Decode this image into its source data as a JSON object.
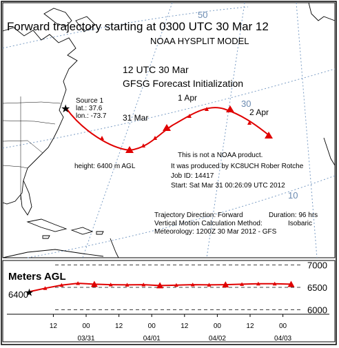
{
  "header": {
    "title": "Forward trajectory starting at 0300 UTC 30 Mar 12",
    "model": "NOAA HYSPLIT MODEL",
    "init_time": "12 UTC 30 Mar",
    "init_label": "GFSG  Forecast Initialization"
  },
  "source": {
    "label": "Source 1",
    "lat": "lat.: 37.6",
    "lon": "lon.: -73.7",
    "height": "height: 6400 m AGL"
  },
  "disclaimer": {
    "line1": "This is not a NOAA product.",
    "line2": "It was produced by KC8UCH Rober Rotche",
    "job": "Job ID: 14417",
    "start": "Start: Sat Mar 31 00:26:09 UTC 2012"
  },
  "run_info": {
    "direction_label": "Trajectory Direction: Forward",
    "duration": "Duration: 96 hrs",
    "vertical_label": "Vertical Motion Calculation Method:",
    "vertical_value": "Isobaric",
    "meteorology": "Meteorology: 1200Z 30 Mar 2012 - GFS"
  },
  "map": {
    "grid_labels": [
      "50",
      "30",
      "10"
    ],
    "day_labels": [
      "31 Mar",
      "1 Apr",
      "2 Apr"
    ]
  },
  "profile": {
    "ylabel": "Meters AGL",
    "start_label": "6400",
    "y_ticks": [
      "7000",
      "6500",
      "6000"
    ],
    "x_hours": [
      "12",
      "00",
      "12",
      "00",
      "12",
      "00",
      "12",
      "00"
    ],
    "x_dates": [
      "03/31",
      "04/01",
      "04/02",
      "04/03"
    ]
  },
  "chart_data": {
    "type": "line",
    "series": [
      {
        "x": [
          0,
          6,
          12,
          18,
          24,
          30,
          36,
          42,
          48,
          54,
          60,
          66,
          72,
          78,
          84,
          90,
          96
        ],
        "values": [
          6400,
          6480,
          6550,
          6590,
          6570,
          6560,
          6555,
          6560,
          6540,
          6550,
          6560,
          6555,
          6560,
          6570,
          6580,
          6580,
          6570
        ]
      }
    ],
    "ylim": [
      5900,
      7100
    ],
    "xlim": [
      -8,
      110
    ],
    "ylabel": "Meters AGL"
  },
  "colors": {
    "trajectory": "#e00000",
    "grid": "#7a9cc4",
    "land": "#000000"
  }
}
